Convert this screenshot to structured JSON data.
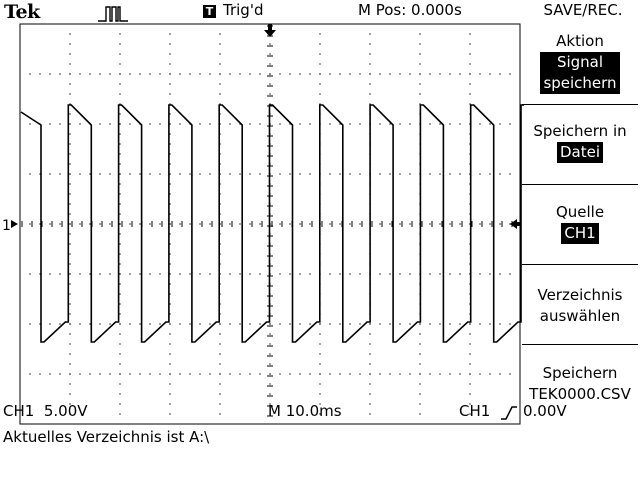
{
  "header": {
    "brand": "Tek",
    "acquire_icon": "pulse-waveform-icon",
    "trigger_badge": "T",
    "trigger_status": "Trig'd",
    "main_position": "M Pos: 0.000s",
    "menu_title": "SAVE/REC."
  },
  "side_menu": {
    "aktion": {
      "label": "Aktion",
      "value_line1": "Signal",
      "value_line2": "speichern"
    },
    "speichern_in": {
      "label": "Speichern in",
      "value": "Datei"
    },
    "quelle": {
      "label": "Quelle",
      "value": "CH1"
    },
    "verzeichnis": {
      "line1": "Verzeichnis",
      "line2": "auswählen"
    },
    "speichern": {
      "line1": "Speichern",
      "line2": "TEK0000.CSV"
    }
  },
  "markers": {
    "ch1_ground": "1",
    "trigger_position_icon": "down-arrow-icon",
    "trigger_level_icon": "left-arrow-icon"
  },
  "status": {
    "ch1_scale": "CH1  5.00V",
    "timebase": "M 10.0ms",
    "trigger_source": "CH1",
    "trigger_slope_icon": "rising-edge-icon",
    "trigger_level": "0.00V",
    "message": "Aktuelles Verzeichnis ist A:\\"
  }
}
